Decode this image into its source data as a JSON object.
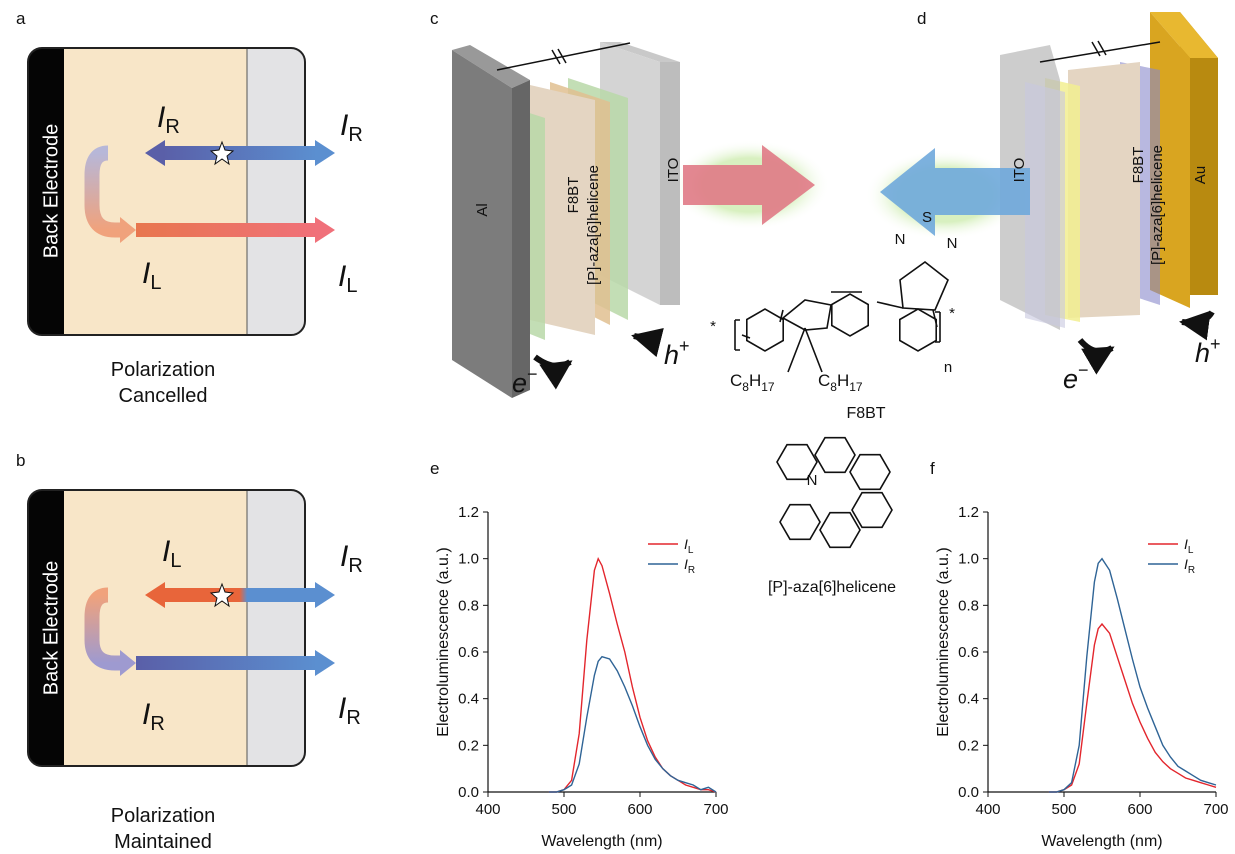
{
  "panels": {
    "a": {
      "label": "a",
      "electrode": "Back Electrode",
      "emitted": {
        "symbol": "I",
        "sub": "R"
      },
      "out_top": {
        "symbol": "I",
        "sub": "R"
      },
      "reflected": {
        "symbol": "I",
        "sub": "L"
      },
      "out_bottom": {
        "symbol": "I",
        "sub": "L"
      },
      "caption": [
        "Polarization",
        "Cancelled"
      ]
    },
    "b": {
      "label": "b",
      "electrode": "Back Electrode",
      "emitted": {
        "symbol": "I",
        "sub": "L"
      },
      "out_top": {
        "symbol": "I",
        "sub": "R"
      },
      "reflected": {
        "symbol": "I",
        "sub": "R"
      },
      "out_bottom": {
        "symbol": "I",
        "sub": "R"
      },
      "caption": [
        "Polarization",
        "Maintained"
      ]
    },
    "c": {
      "label": "c",
      "layers": [
        "Al",
        "F8BT",
        "[P]-aza[6]helicene",
        "ITO"
      ],
      "electron": {
        "symbol": "e",
        "sup": "−"
      },
      "hole": {
        "symbol": "h",
        "sup": "+"
      }
    },
    "d": {
      "label": "d",
      "layers": [
        "ITO",
        "F8BT",
        "[P]-aza[6]helicene",
        "Au"
      ],
      "electron": {
        "symbol": "e",
        "sup": "−"
      },
      "hole": {
        "symbol": "h",
        "sup": "+"
      }
    }
  },
  "molecules": {
    "f8bt": {
      "name": "F8BT",
      "atoms": [
        "S",
        "N",
        "N"
      ],
      "ends": [
        "*",
        "*"
      ],
      "repeat": "n",
      "side_chains": [
        [
          "C",
          "8",
          "H",
          "17"
        ],
        [
          "C",
          "8",
          "H",
          "17"
        ]
      ]
    },
    "helicene": {
      "name": "[P]-aza[6]helicene",
      "atoms": [
        "N"
      ]
    }
  },
  "chart_data": [
    {
      "type": "line",
      "label": "e",
      "xlabel": "Wavelength (nm)",
      "ylabel": "Electroluminescence (a.u.)",
      "x": [
        480,
        490,
        500,
        510,
        520,
        530,
        540,
        545,
        550,
        560,
        570,
        580,
        590,
        600,
        610,
        620,
        630,
        640,
        650,
        660,
        670,
        680,
        690,
        700
      ],
      "xlim": [
        400,
        700
      ],
      "ylim": [
        0,
        1.2
      ],
      "xticks": [
        400,
        500,
        600,
        700
      ],
      "yticks": [
        {
          "value": 0,
          "label": "0.0"
        },
        {
          "value": 0.2,
          "label": "0.2"
        },
        {
          "value": 0.4,
          "label": "0.4"
        },
        {
          "value": 0.6,
          "label": "0.6"
        },
        {
          "value": 0.8,
          "label": "0.8"
        },
        {
          "value": 1.0,
          "label": "1.0"
        },
        {
          "value": 1.2,
          "label": "1.2"
        }
      ],
      "legend": "upper right",
      "series": [
        {
          "name": "I",
          "sub": "L",
          "color": "#e3262d",
          "values": [
            0,
            0,
            0.01,
            0.05,
            0.25,
            0.65,
            0.95,
            1.0,
            0.97,
            0.85,
            0.72,
            0.6,
            0.45,
            0.32,
            0.22,
            0.15,
            0.1,
            0.07,
            0.05,
            0.03,
            0.02,
            0.01,
            0.01,
            0
          ]
        },
        {
          "name": "I",
          "sub": "R",
          "color": "#2f6496",
          "values": [
            0,
            0,
            0.01,
            0.03,
            0.12,
            0.32,
            0.5,
            0.56,
            0.58,
            0.57,
            0.52,
            0.45,
            0.37,
            0.28,
            0.2,
            0.14,
            0.1,
            0.07,
            0.05,
            0.04,
            0.03,
            0.01,
            0.02,
            0
          ]
        }
      ]
    },
    {
      "type": "line",
      "label": "f",
      "xlabel": "Wavelength (nm)",
      "ylabel": "Electroluminescence (a.u.)",
      "x": [
        480,
        490,
        500,
        510,
        520,
        530,
        540,
        545,
        550,
        560,
        570,
        580,
        590,
        600,
        610,
        620,
        630,
        640,
        650,
        660,
        670,
        680,
        690,
        700
      ],
      "xlim": [
        400,
        700
      ],
      "ylim": [
        0,
        1.2
      ],
      "xticks": [
        400,
        500,
        600,
        700
      ],
      "yticks": [
        {
          "value": 0,
          "label": "0.0"
        },
        {
          "value": 0.2,
          "label": "0.2"
        },
        {
          "value": 0.4,
          "label": "0.4"
        },
        {
          "value": 0.6,
          "label": "0.6"
        },
        {
          "value": 0.8,
          "label": "0.8"
        },
        {
          "value": 1.0,
          "label": "1.0"
        },
        {
          "value": 1.2,
          "label": "1.2"
        }
      ],
      "legend": "upper right",
      "series": [
        {
          "name": "I",
          "sub": "L",
          "color": "#e3262d",
          "values": [
            0,
            0,
            0.01,
            0.03,
            0.12,
            0.38,
            0.63,
            0.7,
            0.72,
            0.68,
            0.58,
            0.48,
            0.38,
            0.3,
            0.23,
            0.17,
            0.13,
            0.1,
            0.08,
            0.06,
            0.05,
            0.04,
            0.03,
            0.02
          ]
        },
        {
          "name": "I",
          "sub": "R",
          "color": "#2f6496",
          "values": [
            0,
            0,
            0.01,
            0.04,
            0.2,
            0.58,
            0.9,
            0.98,
            1.0,
            0.95,
            0.83,
            0.7,
            0.57,
            0.45,
            0.36,
            0.28,
            0.2,
            0.15,
            0.11,
            0.09,
            0.07,
            0.05,
            0.04,
            0.03
          ]
        }
      ]
    }
  ]
}
